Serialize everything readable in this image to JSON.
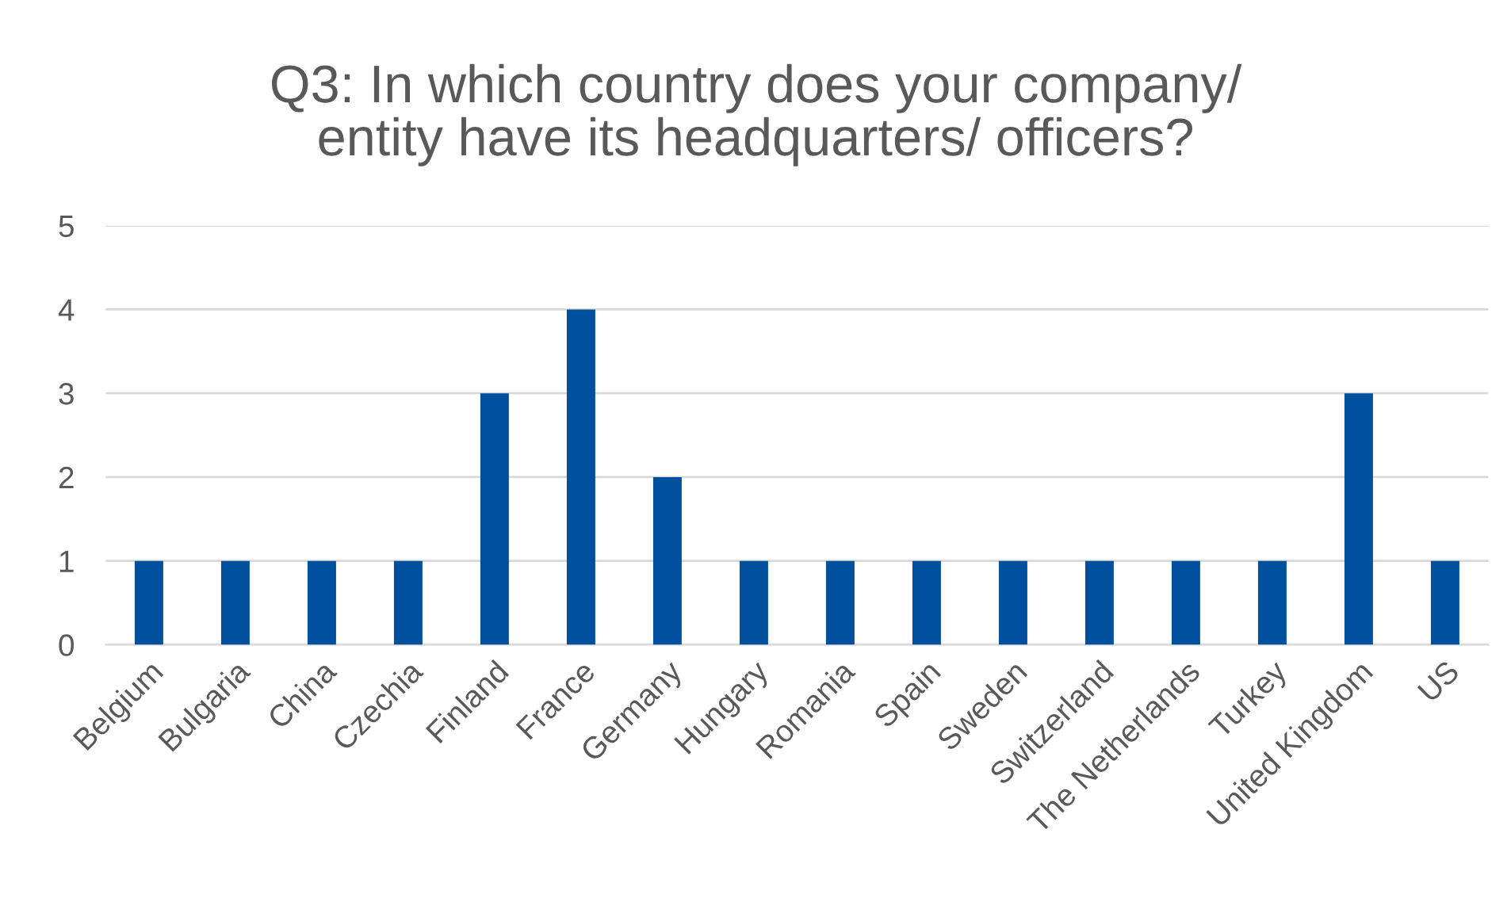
{
  "chart_data": {
    "type": "bar",
    "title": "Q3: In which country does your company/ entity have its headquarters/ officers?",
    "categories": [
      "Belgium",
      "Bulgaria",
      "China",
      "Czechia",
      "Finland",
      "France",
      "Germany",
      "Hungary",
      "Romania",
      "Spain",
      "Sweden",
      "Switzerland",
      "The Netherlands",
      "Turkey",
      "United Kingdom",
      "US"
    ],
    "values": [
      1,
      1,
      1,
      1,
      3,
      4,
      2,
      1,
      1,
      1,
      1,
      1,
      1,
      1,
      3,
      1
    ],
    "color": "#00509e",
    "ylim": [
      0,
      5
    ],
    "yticks": [
      0,
      1,
      2,
      3,
      4,
      5
    ],
    "grid": "y",
    "legend": false
  }
}
